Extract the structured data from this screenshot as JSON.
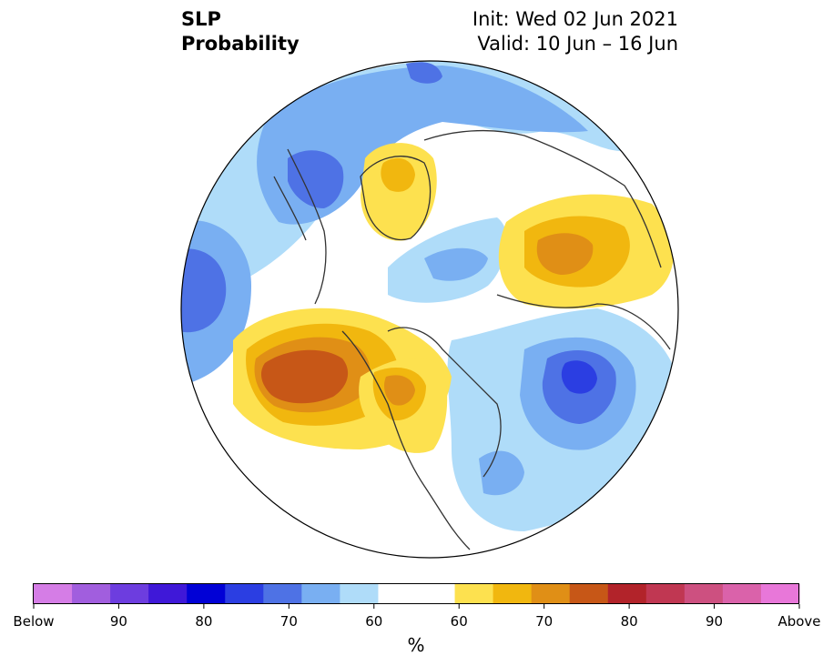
{
  "title": {
    "variable": "SLP",
    "subtitle": "Probability",
    "init": "Init: Wed 02 Jun 2021",
    "valid": "Valid: 10 Jun – 16 Jun"
  },
  "map": {
    "projection": "north-polar-stereographic",
    "anomalies": [
      {
        "region": "northeast-pacific",
        "category": "above",
        "peak_percent": 70
      },
      {
        "region": "central-canada",
        "category": "above",
        "peak_percent": 65
      },
      {
        "region": "greenland",
        "category": "above",
        "peak_percent": 60
      },
      {
        "region": "eastern-europe-russia",
        "category": "above",
        "peak_percent": 65
      },
      {
        "region": "north-atlantic",
        "category": "below",
        "peak_percent": 80
      },
      {
        "region": "western-pacific",
        "category": "below",
        "peak_percent": 70
      },
      {
        "region": "eastern-siberia",
        "category": "below",
        "peak_percent": 75
      },
      {
        "region": "arctic-ocean",
        "category": "below",
        "peak_percent": 60
      },
      {
        "region": "atlantic-canada",
        "category": "below",
        "peak_percent": 60
      }
    ]
  },
  "colorbar": {
    "colors": [
      "#d57de6",
      "#a15ede",
      "#6d3ddf",
      "#3f18d8",
      "#0101d6",
      "#2b3ee2",
      "#4e72e5",
      "#79aff2",
      "#afdcf9",
      "#ffffff",
      "#ffffff",
      "#fde14f",
      "#f1b70f",
      "#e08f16",
      "#c75717",
      "#b2232a",
      "#c03752",
      "#cd5080",
      "#da62aa",
      "#e877d9"
    ],
    "ticks": [
      "Below",
      "90",
      "80",
      "70",
      "60",
      "60",
      "70",
      "80",
      "90",
      "Above"
    ],
    "unit": "%"
  }
}
